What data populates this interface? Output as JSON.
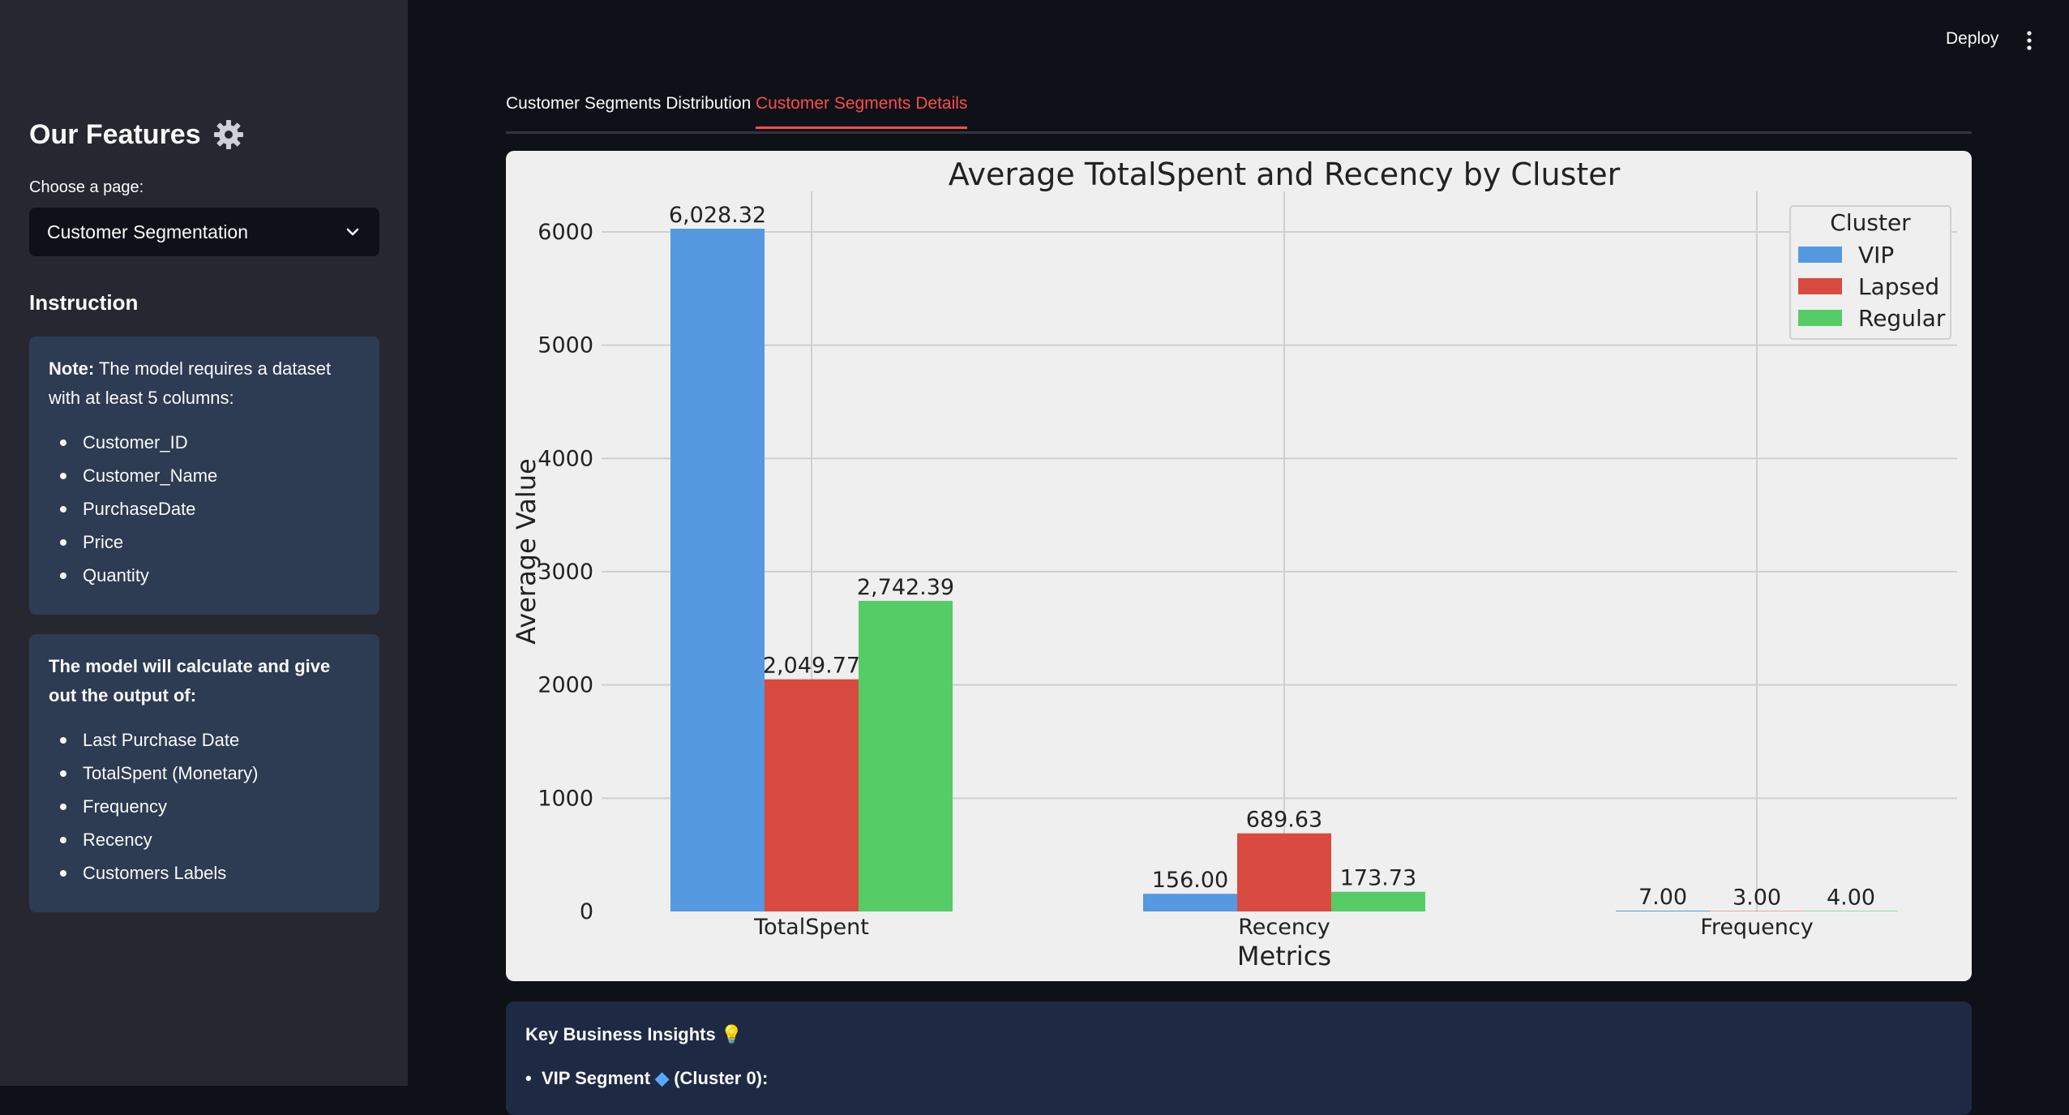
{
  "sidebar": {
    "title": "Our Features",
    "title_icon": "gear-icon",
    "choose_label": "Choose a page:",
    "select_value": "Customer Segmentation",
    "instruction_heading": "Instruction",
    "note_label": "Note:",
    "note_text": " The model requires a dataset with at least 5 columns:",
    "required_columns": [
      "Customer_ID",
      "Customer_Name",
      "PurchaseDate",
      "Price",
      "Quantity"
    ],
    "output_heading": "The model will calculate and give out the output of:",
    "outputs": [
      "Last Purchase Date",
      "TotalSpent (Monetary)",
      "Frequency",
      "Recency",
      "Customers Labels"
    ]
  },
  "header": {
    "deploy_label": "Deploy"
  },
  "tabs": [
    {
      "label": "Customer Segments Distribution",
      "active": false
    },
    {
      "label": "Customer Segments Details",
      "active": true
    }
  ],
  "chart_data": {
    "type": "bar",
    "title": "Average TotalSpent and Recency by Cluster",
    "xlabel": "Metrics",
    "ylabel": "Average Value",
    "categories": [
      "TotalSpent",
      "Recency",
      "Frequency"
    ],
    "series": [
      {
        "name": "VIP",
        "color": "#5599e0",
        "values": [
          6028.32,
          156.0,
          7.0
        ],
        "labels": [
          "6,028.32",
          "156.00",
          "7.00"
        ]
      },
      {
        "name": "Lapsed",
        "color": "#d94a40",
        "values": [
          2049.77,
          689.63,
          3.0
        ],
        "labels": [
          "2,049.77",
          "689.63",
          "3.00"
        ]
      },
      {
        "name": "Regular",
        "color": "#55cc66",
        "values": [
          2742.39,
          173.73,
          4.0
        ],
        "labels": [
          "2,742.39",
          "173.73",
          "4.00"
        ]
      }
    ],
    "ylim": [
      0,
      6300
    ],
    "yticks": [
      0,
      1000,
      2000,
      3000,
      4000,
      5000,
      6000
    ],
    "legend_title": "Cluster",
    "legend_position": "top-right",
    "grid": true
  },
  "insights": {
    "title": "Key Business Insights",
    "title_icon": "lightbulb-icon",
    "first_item": "VIP Segment",
    "first_item_icon": "gem-icon",
    "first_item_suffix": "(Cluster 0):"
  }
}
